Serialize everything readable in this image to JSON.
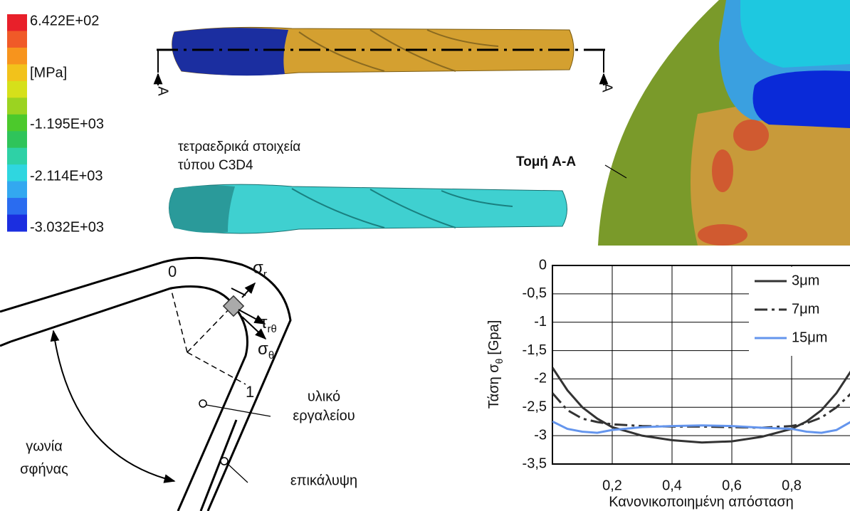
{
  "colorbar": {
    "labels": [
      "6.422E+02",
      "[MPa]",
      "-1.195E+03",
      "-2.114E+03",
      "-3.032E+03"
    ],
    "colors": [
      "#e8202a",
      "#f05a28",
      "#f7941d",
      "#f2c21b",
      "#d6e01a",
      "#9bd321",
      "#4cc92c",
      "#2fc45a",
      "#2ed1a6",
      "#2fd6e0",
      "#33a8f0",
      "#2a6cf0",
      "#1b2ee0"
    ]
  },
  "drill": {
    "section_marks": [
      "A",
      "A"
    ],
    "mesh_label": [
      "τετραεδρικά στοιχεία",
      "τύπου C3D4"
    ]
  },
  "section": {
    "label": "Τομή A-A"
  },
  "diagram": {
    "points": [
      "0",
      "1"
    ],
    "sigma_r": {
      "symbol": "σ",
      "sub": "r"
    },
    "tau": {
      "symbol": "τ",
      "sub": "rθ"
    },
    "sigma_theta": {
      "symbol": "σ",
      "sub": "θ"
    },
    "tool_material": [
      "υλικό",
      "εργαλείου"
    ],
    "coating": "επικάλυψη",
    "wedge_angle": [
      "γωνία",
      "σφήνας"
    ]
  },
  "chart_data": {
    "type": "line",
    "ylabel": {
      "text": "Τάση σ",
      "sub": "θ",
      "unit": "[Gpa]"
    },
    "xlabel": "Κανονικοποιημένη απόσταση",
    "x": [
      0,
      0.05,
      0.1,
      0.15,
      0.2,
      0.3,
      0.4,
      0.5,
      0.6,
      0.7,
      0.8,
      0.85,
      0.9,
      0.95,
      1
    ],
    "series": [
      {
        "name": "3μm",
        "color": "#333333",
        "dash": "solid",
        "values": [
          -1.8,
          -2.2,
          -2.5,
          -2.7,
          -2.85,
          -3.0,
          -3.08,
          -3.12,
          -3.1,
          -3.02,
          -2.88,
          -2.75,
          -2.55,
          -2.25,
          -1.85
        ]
      },
      {
        "name": "7μm",
        "color": "#333333",
        "dash": "dashdot",
        "values": [
          -2.25,
          -2.55,
          -2.7,
          -2.76,
          -2.8,
          -2.83,
          -2.84,
          -2.84,
          -2.85,
          -2.86,
          -2.83,
          -2.78,
          -2.68,
          -2.5,
          -2.25
        ]
      },
      {
        "name": "15μm",
        "color": "#6495ed",
        "dash": "solid",
        "values": [
          -2.75,
          -2.88,
          -2.93,
          -2.95,
          -2.9,
          -2.85,
          -2.83,
          -2.82,
          -2.83,
          -2.86,
          -2.88,
          -2.93,
          -2.95,
          -2.9,
          -2.75
        ]
      }
    ],
    "xlim": [
      0,
      1
    ],
    "ylim": [
      -3.5,
      0
    ],
    "xticks": [
      {
        "value": 0.2,
        "label": "0,2"
      },
      {
        "value": 0.4,
        "label": "0,4"
      },
      {
        "value": 0.6,
        "label": "0,6"
      },
      {
        "value": 0.8,
        "label": "0,8"
      }
    ],
    "yticks": [
      0,
      {
        "value": -0.5,
        "label": "-0,5"
      },
      -1,
      {
        "value": -1.5,
        "label": "-1,5"
      },
      -2,
      {
        "value": -2.5,
        "label": "-2,5"
      },
      -3,
      {
        "value": -3.5,
        "label": "-3,5"
      }
    ],
    "grid": true,
    "legend": "upper right"
  }
}
